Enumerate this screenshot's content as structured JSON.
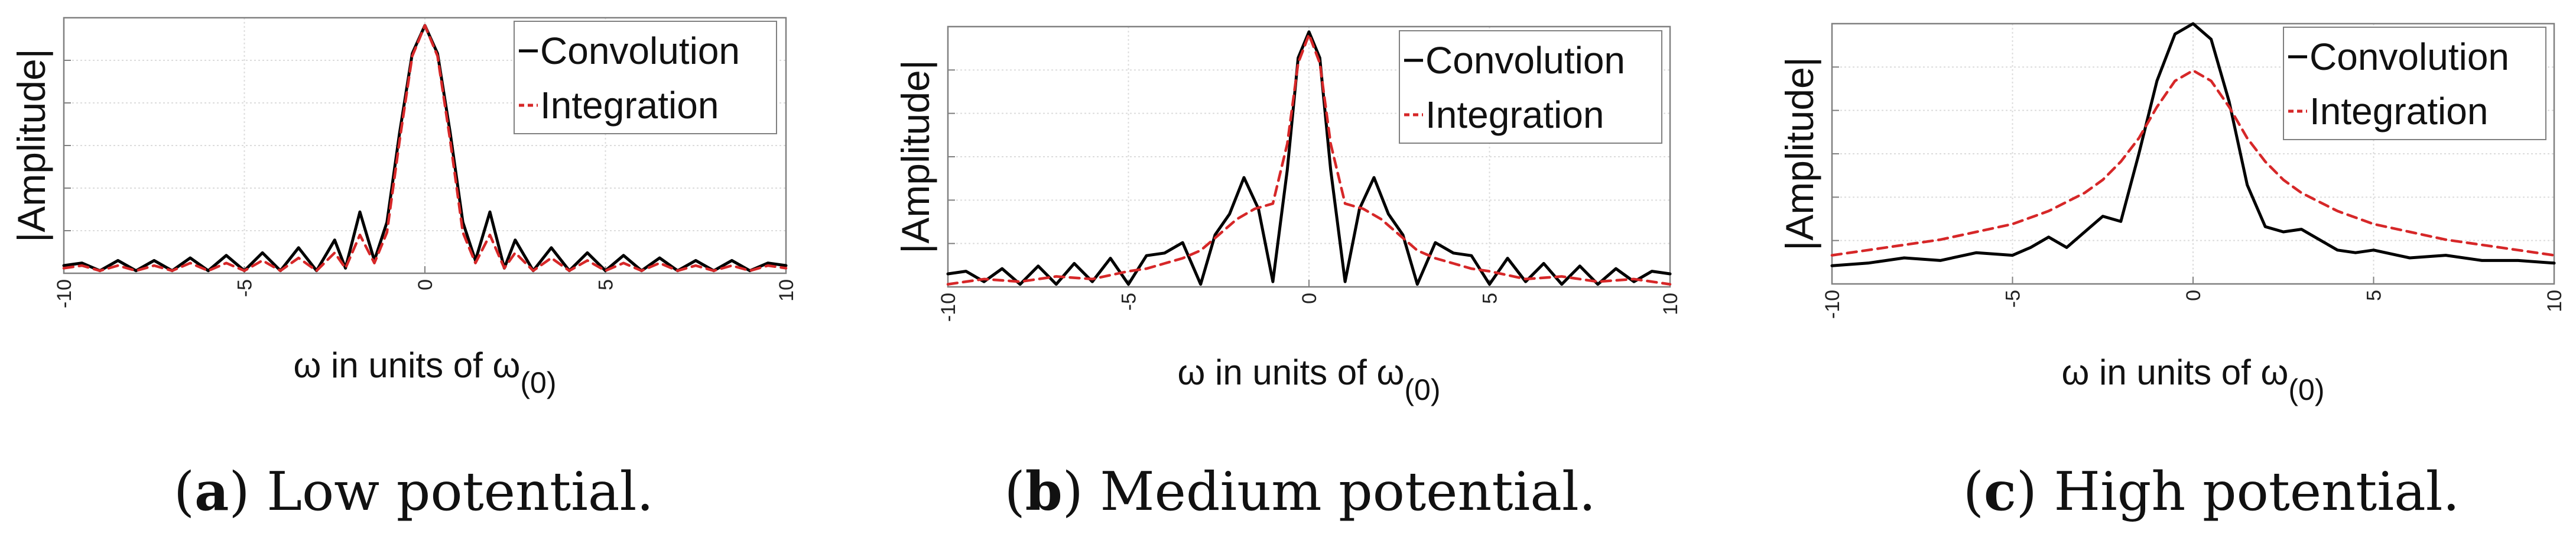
{
  "legend_labels": [
    "Convolution",
    "Integration"
  ],
  "colors": {
    "convolution": "#000000",
    "integration": "#d62728",
    "grid": "#dcdcdc",
    "axis": "#808080"
  },
  "chart_data": [
    {
      "type": "line",
      "caption_letter": "(a)",
      "caption_text": " Low potential.",
      "xlabel_main": "ω in units of ω",
      "xlabel_sub": "(0)",
      "ylabel": "|Amplitude|",
      "xlim": [
        -10,
        10
      ],
      "ylim": [
        0,
        1.0
      ],
      "xticks": [
        -10,
        -5,
        0,
        5,
        10
      ],
      "grid": true,
      "legend_position": "top-right",
      "series": [
        {
          "name": "Convolution",
          "style": "solid",
          "x": [
            -10,
            -9.5,
            -9,
            -8.5,
            -8,
            -7.5,
            -7,
            -6.5,
            -6,
            -5.5,
            -5,
            -4.5,
            -4,
            -3.5,
            -3,
            -2.5,
            -2.2,
            -1.8,
            -1.4,
            -1.05,
            -0.7,
            -0.35,
            0,
            0.35,
            0.7,
            1.05,
            1.4,
            1.8,
            2.2,
            2.5,
            3,
            3.5,
            4,
            4.5,
            5,
            5.5,
            6,
            6.5,
            7,
            7.5,
            8,
            8.5,
            9,
            9.5,
            10
          ],
          "y": [
            0.03,
            0.04,
            0.01,
            0.05,
            0.01,
            0.05,
            0.01,
            0.06,
            0.01,
            0.07,
            0.01,
            0.08,
            0.01,
            0.1,
            0.01,
            0.13,
            0.02,
            0.24,
            0.05,
            0.2,
            0.55,
            0.86,
            0.97,
            0.86,
            0.55,
            0.2,
            0.05,
            0.24,
            0.02,
            0.13,
            0.01,
            0.1,
            0.01,
            0.08,
            0.01,
            0.07,
            0.01,
            0.06,
            0.01,
            0.05,
            0.01,
            0.05,
            0.01,
            0.04,
            0.03
          ]
        },
        {
          "name": "Integration",
          "style": "dashed",
          "x": [
            -10,
            -9.5,
            -9,
            -8.5,
            -8,
            -7.5,
            -7,
            -6.5,
            -6,
            -5.5,
            -5,
            -4.5,
            -4,
            -3.5,
            -3,
            -2.5,
            -2.2,
            -1.8,
            -1.4,
            -1.05,
            -0.7,
            -0.35,
            0,
            0.35,
            0.7,
            1.05,
            1.4,
            1.8,
            2.2,
            2.5,
            3,
            3.5,
            4,
            4.5,
            5,
            5.5,
            6,
            6.5,
            7,
            7.5,
            8,
            8.5,
            9,
            9.5,
            10
          ],
          "y": [
            0.02,
            0.03,
            0.01,
            0.03,
            0.01,
            0.03,
            0.01,
            0.04,
            0.01,
            0.04,
            0.01,
            0.05,
            0.01,
            0.06,
            0.01,
            0.08,
            0.02,
            0.15,
            0.04,
            0.16,
            0.52,
            0.85,
            0.97,
            0.85,
            0.52,
            0.16,
            0.04,
            0.15,
            0.02,
            0.08,
            0.01,
            0.06,
            0.01,
            0.05,
            0.01,
            0.04,
            0.01,
            0.04,
            0.01,
            0.03,
            0.01,
            0.03,
            0.01,
            0.03,
            0.02
          ]
        }
      ]
    },
    {
      "type": "line",
      "caption_letter": "(b)",
      "caption_text": " Medium potential.",
      "xlabel_main": "ω in units of ω",
      "xlabel_sub": "(0)",
      "ylabel": "|Amplitude|",
      "xlim": [
        -10,
        10
      ],
      "ylim": [
        0,
        1.0
      ],
      "xticks": [
        -10,
        -5,
        0,
        5,
        10
      ],
      "grid": true,
      "legend_position": "top-right",
      "series": [
        {
          "name": "Convolution",
          "style": "solid",
          "x": [
            -10,
            -9.5,
            -9,
            -8.5,
            -8,
            -7.5,
            -7,
            -6.5,
            -6,
            -5.5,
            -5,
            -4.5,
            -4,
            -3.5,
            -3,
            -2.6,
            -2.2,
            -1.8,
            -1.4,
            -1.0,
            -0.6,
            -0.3,
            0,
            0.3,
            0.6,
            1.0,
            1.4,
            1.8,
            2.2,
            2.6,
            3,
            3.5,
            4,
            4.5,
            5,
            5.5,
            6,
            6.5,
            7,
            7.5,
            8,
            8.5,
            9,
            9.5,
            10
          ],
          "y": [
            0.05,
            0.06,
            0.02,
            0.07,
            0.01,
            0.08,
            0.01,
            0.09,
            0.02,
            0.11,
            0.01,
            0.12,
            0.13,
            0.17,
            0.01,
            0.2,
            0.28,
            0.42,
            0.3,
            0.02,
            0.45,
            0.88,
            0.98,
            0.88,
            0.45,
            0.02,
            0.3,
            0.42,
            0.28,
            0.2,
            0.01,
            0.17,
            0.13,
            0.12,
            0.01,
            0.11,
            0.02,
            0.09,
            0.01,
            0.08,
            0.01,
            0.07,
            0.02,
            0.06,
            0.05
          ]
        },
        {
          "name": "Integration",
          "style": "dashed",
          "x": [
            -10,
            -9,
            -8,
            -7,
            -6,
            -5,
            -4.5,
            -4,
            -3.5,
            -3,
            -2.5,
            -2,
            -1.5,
            -1.0,
            -0.6,
            -0.3,
            0,
            0.3,
            0.6,
            1.0,
            1.5,
            2,
            2.5,
            3,
            3.5,
            4,
            4.5,
            5,
            6,
            7,
            8,
            9,
            10
          ],
          "y": [
            0.01,
            0.03,
            0.02,
            0.04,
            0.03,
            0.06,
            0.07,
            0.09,
            0.11,
            0.14,
            0.2,
            0.26,
            0.3,
            0.32,
            0.55,
            0.86,
            0.97,
            0.86,
            0.55,
            0.32,
            0.3,
            0.26,
            0.2,
            0.14,
            0.11,
            0.09,
            0.07,
            0.06,
            0.03,
            0.04,
            0.02,
            0.03,
            0.01
          ]
        }
      ]
    },
    {
      "type": "line",
      "caption_letter": "(c)",
      "caption_text": " High potential.",
      "xlabel_main": "ω in units of ω",
      "xlabel_sub": "(0)",
      "ylabel": "|Amplitude|",
      "xlim": [
        -10,
        10
      ],
      "ylim": [
        0,
        1.0
      ],
      "xticks": [
        -10,
        -5,
        0,
        5,
        10
      ],
      "grid": true,
      "legend_position": "top-right",
      "series": [
        {
          "name": "Convolution",
          "style": "solid",
          "x": [
            -10,
            -9,
            -8,
            -7,
            -6,
            -5,
            -4.5,
            -4,
            -3.5,
            -3,
            -2.5,
            -2,
            -1.5,
            -1,
            -0.5,
            0,
            0.5,
            1,
            1.5,
            2,
            2.5,
            3,
            3.5,
            4,
            4.5,
            5,
            6,
            7,
            8,
            9,
            10
          ],
          "y": [
            0.07,
            0.08,
            0.1,
            0.09,
            0.12,
            0.11,
            0.14,
            0.18,
            0.14,
            0.2,
            0.26,
            0.24,
            0.5,
            0.78,
            0.96,
            1.0,
            0.94,
            0.7,
            0.38,
            0.22,
            0.2,
            0.21,
            0.17,
            0.13,
            0.12,
            0.13,
            0.1,
            0.11,
            0.09,
            0.09,
            0.08
          ]
        },
        {
          "name": "Integration",
          "style": "dashed",
          "x": [
            -10,
            -9,
            -8,
            -7,
            -6,
            -5,
            -4,
            -3,
            -2.5,
            -2,
            -1.5,
            -1,
            -0.5,
            0,
            0.5,
            1,
            1.5,
            2,
            2.5,
            3,
            4,
            5,
            6,
            7,
            8,
            9,
            10
          ],
          "y": [
            0.11,
            0.13,
            0.15,
            0.17,
            0.2,
            0.23,
            0.28,
            0.35,
            0.4,
            0.47,
            0.56,
            0.68,
            0.78,
            0.82,
            0.78,
            0.68,
            0.56,
            0.47,
            0.4,
            0.35,
            0.28,
            0.23,
            0.2,
            0.17,
            0.15,
            0.13,
            0.11
          ]
        }
      ]
    }
  ]
}
